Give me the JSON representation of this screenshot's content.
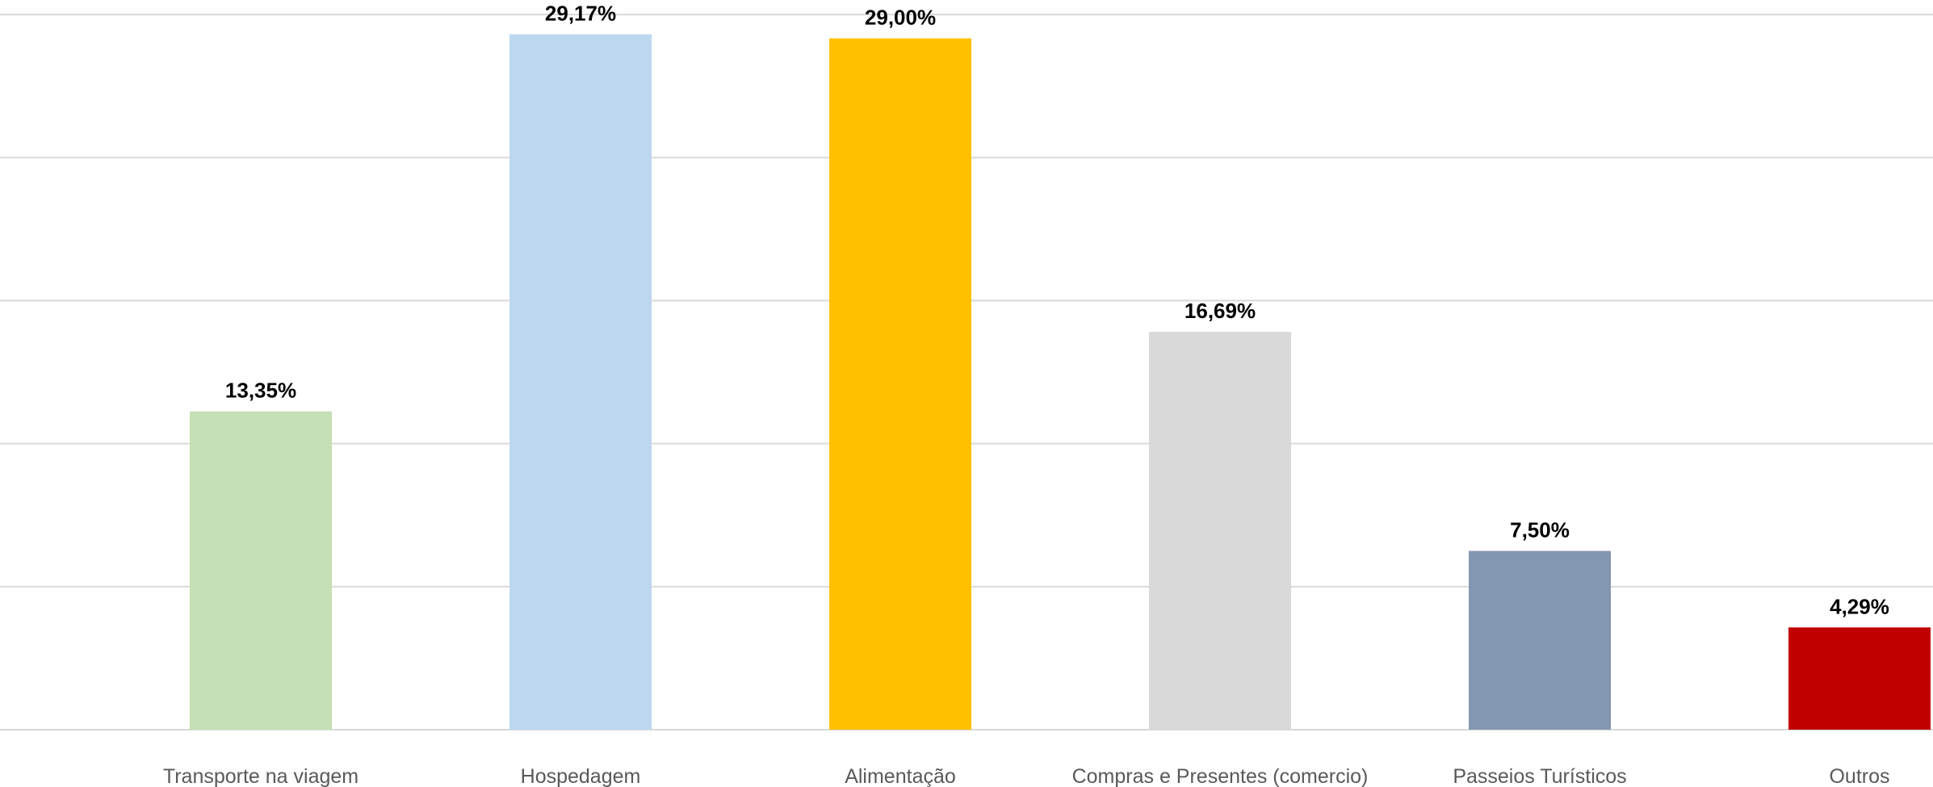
{
  "chart_data": {
    "type": "bar",
    "categories": [
      "Transporte na viagem",
      "Hospedagem",
      "Alimentação",
      "Compras e Presentes (comercio)",
      "Passeios Turísticos",
      "Outros"
    ],
    "values": [
      13.35,
      29.17,
      29.0,
      16.69,
      7.5,
      4.29
    ],
    "data_labels": [
      "13,35%",
      "29,17%",
      "29,00%",
      "16,69%",
      "7,50%",
      "4,29%"
    ],
    "colors": [
      "#c5e0b4",
      "#bdd7ee",
      "#ffc000",
      "#d9d9d9",
      "#8497b0",
      "#c00000"
    ],
    "ylim": [
      0,
      30
    ],
    "y_gridlines": [
      0,
      6,
      12,
      18,
      24,
      30
    ],
    "grid": true,
    "legend": "none",
    "title": "",
    "xlabel": "",
    "ylabel": ""
  }
}
